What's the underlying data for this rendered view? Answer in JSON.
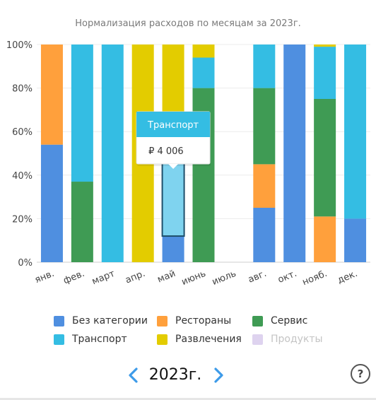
{
  "chart_data": {
    "type": "bar",
    "stacked": true,
    "normalized": true,
    "title": "Нормализация расходов по месяцам за 2023г.",
    "categories": [
      "янв.",
      "фев.",
      "март",
      "апр.",
      "май",
      "июнь",
      "июль",
      "авг.",
      "окт.",
      "нояб.",
      "дек."
    ],
    "ylim": [
      0,
      100
    ],
    "yticks": [
      "0%",
      "20%",
      "40%",
      "60%",
      "80%",
      "100%"
    ],
    "grid": true,
    "series": [
      {
        "name": "Без категории",
        "color": "#4f8fe0",
        "values": [
          54,
          0,
          0,
          0,
          12,
          0,
          0,
          25,
          100,
          0,
          20
        ]
      },
      {
        "name": "Рестораны",
        "color": "#ffa03c",
        "values": [
          46,
          0,
          0,
          0,
          0,
          0,
          0,
          20,
          0,
          21,
          0
        ]
      },
      {
        "name": "Сервис",
        "color": "#3f9b54",
        "values": [
          0,
          37,
          0,
          0,
          0,
          80,
          0,
          35,
          0,
          54,
          0
        ]
      },
      {
        "name": "Транспорт",
        "color": "#34bde3",
        "values": [
          0,
          63,
          100,
          0,
          34,
          14,
          0,
          20,
          0,
          24,
          80
        ]
      },
      {
        "name": "Развлечения",
        "color": "#e3cc00",
        "values": [
          0,
          0,
          0,
          100,
          54,
          6,
          0,
          0,
          0,
          1,
          0
        ]
      },
      {
        "name": "Продукты",
        "color": "#ded3ef",
        "hidden": true,
        "values": [
          0,
          0,
          0,
          0,
          0,
          0,
          0,
          0,
          0,
          0,
          0
        ]
      }
    ],
    "highlight": {
      "category_index": 4,
      "series_index": 3
    },
    "tooltip": {
      "title": "Транспорт",
      "value": "₽ 4 006"
    }
  },
  "legend": [
    {
      "label": "Без категории",
      "color": "#4f8fe0",
      "hidden": false
    },
    {
      "label": "Рестораны",
      "color": "#ffa03c",
      "hidden": false
    },
    {
      "label": "Сервис",
      "color": "#3f9b54",
      "hidden": false
    },
    {
      "label": "Транспорт",
      "color": "#34bde3",
      "hidden": false
    },
    {
      "label": "Развлечения",
      "color": "#e3cc00",
      "hidden": false
    },
    {
      "label": "Продукты",
      "color": "#ded3ef",
      "hidden": true
    }
  ],
  "year_nav": {
    "year_label": "2023г.",
    "prev_icon": "chevron-left-icon",
    "next_icon": "chevron-right-icon",
    "help_icon": "help-circle-icon",
    "help_text": "?",
    "accent_color": "#3d9be9"
  }
}
